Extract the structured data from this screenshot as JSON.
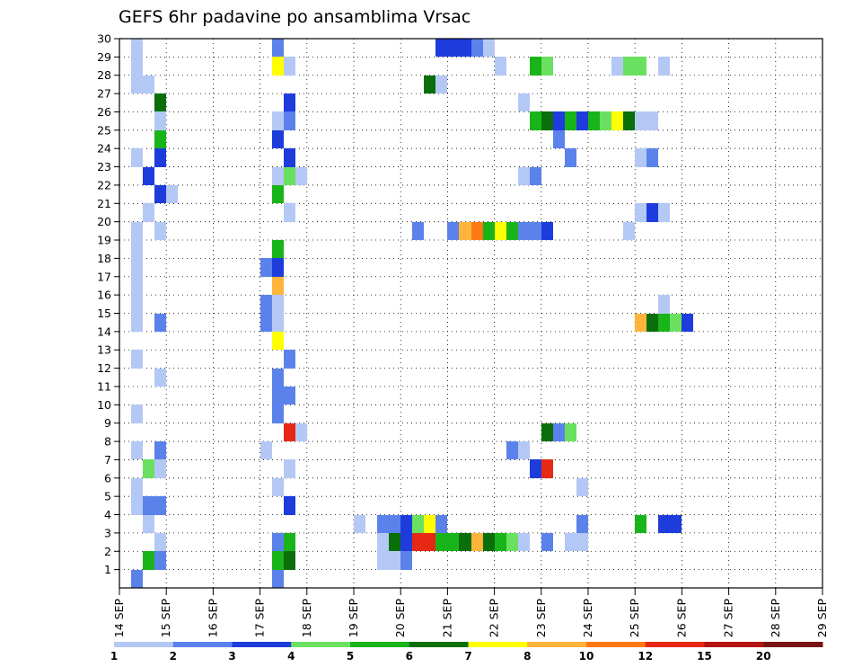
{
  "chart_data": {
    "type": "heatmap",
    "title": "GEFS 6hr padavine po ansamblima Vrsac",
    "xlabel": "",
    "ylabel": "",
    "x_ticks": [
      "14 SEP",
      "15 SEP",
      "16 SEP",
      "17 SEP",
      "18 SEP",
      "19 SEP",
      "20 SEP",
      "21 SEP",
      "22 SEP",
      "23 SEP",
      "24 SEP",
      "25 SEP",
      "26 SEP",
      "27 SEP",
      "28 SEP",
      "29 SEP"
    ],
    "x_unit": "6-hour steps from 14 SEP 00Z",
    "xlim": [
      0,
      60
    ],
    "y_ticks": [
      1,
      2,
      3,
      4,
      5,
      6,
      7,
      8,
      9,
      10,
      11,
      12,
      13,
      14,
      15,
      16,
      17,
      18,
      19,
      20,
      21,
      22,
      23,
      24,
      25,
      26,
      27,
      28,
      29,
      30
    ],
    "ylim": [
      0,
      30
    ],
    "grid": true,
    "legend": {
      "placement": "bottom",
      "thresholds": [
        "1",
        "2",
        "3",
        "4",
        "5",
        "6",
        "7",
        "8",
        "10",
        "12",
        "15",
        "20"
      ],
      "colors": [
        "#b4c8f5",
        "#5b82eb",
        "#1e3cdc",
        "#6be060",
        "#19b419",
        "#0a6e0a",
        "#ffff00",
        "#ffb43c",
        "#ff7814",
        "#e62814",
        "#b41414",
        "#781414"
      ]
    },
    "cells": [
      [
        1,
        30,
        1
      ],
      [
        1,
        29,
        1
      ],
      [
        1,
        28,
        1
      ],
      [
        2,
        28,
        1
      ],
      [
        1,
        24,
        1
      ],
      [
        2,
        23,
        3
      ],
      [
        3,
        27,
        6
      ],
      [
        3,
        26,
        1
      ],
      [
        3,
        25,
        5
      ],
      [
        3,
        24,
        3
      ],
      [
        3,
        22,
        3
      ],
      [
        4,
        22,
        1
      ],
      [
        2,
        21,
        1
      ],
      [
        1,
        20,
        1
      ],
      [
        3,
        20,
        1
      ],
      [
        1,
        19,
        1
      ],
      [
        1,
        18,
        1
      ],
      [
        1,
        17,
        1
      ],
      [
        1,
        16,
        1
      ],
      [
        1,
        15,
        1
      ],
      [
        3,
        15,
        2
      ],
      [
        1,
        13,
        1
      ],
      [
        3,
        12,
        1
      ],
      [
        1,
        10,
        1
      ],
      [
        1,
        8,
        1
      ],
      [
        3,
        8,
        2
      ],
      [
        2,
        7,
        4
      ],
      [
        3,
        7,
        1
      ],
      [
        1,
        6,
        1
      ],
      [
        1,
        5,
        1
      ],
      [
        2,
        5,
        2
      ],
      [
        3,
        5,
        2
      ],
      [
        2,
        4,
        1
      ],
      [
        3,
        3,
        1
      ],
      [
        2,
        2,
        5
      ],
      [
        3,
        2,
        2
      ],
      [
        1,
        1,
        2
      ],
      [
        13,
        30,
        2
      ],
      [
        13,
        29,
        7
      ],
      [
        14,
        29,
        1
      ],
      [
        14,
        27,
        3
      ],
      [
        13,
        26,
        1
      ],
      [
        14,
        26,
        2
      ],
      [
        13,
        25,
        3
      ],
      [
        14,
        24,
        3
      ],
      [
        13,
        23,
        1
      ],
      [
        14,
        23,
        4
      ],
      [
        15,
        23,
        1
      ],
      [
        13,
        22,
        5
      ],
      [
        14,
        21,
        1
      ],
      [
        13,
        19,
        5
      ],
      [
        13,
        18,
        3
      ],
      [
        12,
        18,
        2
      ],
      [
        13,
        17,
        8
      ],
      [
        13,
        16,
        1
      ],
      [
        12,
        16,
        2
      ],
      [
        12,
        15,
        2
      ],
      [
        13,
        15,
        1
      ],
      [
        13,
        14,
        7
      ],
      [
        14,
        13,
        2
      ],
      [
        13,
        12,
        2
      ],
      [
        13,
        11,
        2
      ],
      [
        14,
        11,
        2
      ],
      [
        13,
        10,
        2
      ],
      [
        14,
        9,
        10
      ],
      [
        15,
        9,
        1
      ],
      [
        12,
        8,
        1
      ],
      [
        14,
        7,
        1
      ],
      [
        13,
        6,
        1
      ],
      [
        14,
        5,
        3
      ],
      [
        13,
        3,
        2
      ],
      [
        14,
        3,
        5
      ],
      [
        13,
        2,
        5
      ],
      [
        14,
        2,
        6
      ],
      [
        13,
        1,
        2
      ],
      [
        20,
        4,
        1
      ],
      [
        22,
        4,
        2
      ],
      [
        23,
        4,
        2
      ],
      [
        24,
        4,
        3
      ],
      [
        25,
        4,
        4
      ],
      [
        26,
        4,
        7
      ],
      [
        27,
        4,
        2
      ],
      [
        22,
        3,
        1
      ],
      [
        23,
        3,
        6
      ],
      [
        24,
        3,
        3
      ],
      [
        25,
        3,
        10
      ],
      [
        26,
        3,
        10
      ],
      [
        27,
        3,
        5
      ],
      [
        28,
        3,
        5
      ],
      [
        29,
        3,
        6
      ],
      [
        30,
        3,
        8
      ],
      [
        31,
        3,
        6
      ],
      [
        32,
        3,
        5
      ],
      [
        33,
        3,
        4
      ],
      [
        34,
        3,
        1
      ],
      [
        36,
        3,
        2
      ],
      [
        38,
        3,
        1
      ],
      [
        39,
        3,
        1
      ],
      [
        22,
        2,
        1
      ],
      [
        23,
        2,
        1
      ],
      [
        24,
        2,
        2
      ],
      [
        27,
        30,
        3
      ],
      [
        28,
        30,
        3
      ],
      [
        29,
        30,
        3
      ],
      [
        30,
        30,
        2
      ],
      [
        31,
        30,
        1
      ],
      [
        32,
        29,
        1
      ],
      [
        35,
        29,
        5
      ],
      [
        36,
        29,
        4
      ],
      [
        42,
        29,
        1
      ],
      [
        43,
        29,
        4
      ],
      [
        44,
        29,
        4
      ],
      [
        46,
        29,
        1
      ],
      [
        26,
        28,
        6
      ],
      [
        27,
        28,
        1
      ],
      [
        34,
        27,
        1
      ],
      [
        35,
        26,
        5
      ],
      [
        36,
        26,
        6
      ],
      [
        37,
        26,
        3
      ],
      [
        38,
        26,
        5
      ],
      [
        39,
        26,
        3
      ],
      [
        40,
        26,
        5
      ],
      [
        41,
        26,
        4
      ],
      [
        42,
        26,
        7
      ],
      [
        43,
        26,
        6
      ],
      [
        44,
        26,
        1
      ],
      [
        45,
        26,
        1
      ],
      [
        37,
        25,
        2
      ],
      [
        38,
        24,
        2
      ],
      [
        34,
        23,
        1
      ],
      [
        35,
        23,
        2
      ],
      [
        44,
        24,
        1
      ],
      [
        45,
        24,
        2
      ],
      [
        44,
        21,
        1
      ],
      [
        45,
        21,
        3
      ],
      [
        46,
        21,
        1
      ],
      [
        25,
        20,
        2
      ],
      [
        28,
        20,
        2
      ],
      [
        29,
        20,
        8
      ],
      [
        30,
        20,
        9
      ],
      [
        31,
        20,
        5
      ],
      [
        32,
        20,
        7
      ],
      [
        33,
        20,
        5
      ],
      [
        34,
        20,
        2
      ],
      [
        35,
        20,
        2
      ],
      [
        36,
        20,
        3
      ],
      [
        43,
        20,
        1
      ],
      [
        46,
        16,
        1
      ],
      [
        44,
        15,
        8
      ],
      [
        45,
        15,
        6
      ],
      [
        46,
        15,
        5
      ],
      [
        47,
        15,
        4
      ],
      [
        48,
        15,
        3
      ],
      [
        36,
        9,
        6
      ],
      [
        37,
        9,
        2
      ],
      [
        38,
        9,
        4
      ],
      [
        33,
        8,
        2
      ],
      [
        34,
        8,
        1
      ],
      [
        35,
        7,
        3
      ],
      [
        36,
        7,
        10
      ],
      [
        39,
        6,
        1
      ],
      [
        39,
        4,
        2
      ],
      [
        44,
        4,
        5
      ],
      [
        46,
        4,
        3
      ],
      [
        47,
        4,
        3
      ]
    ]
  }
}
